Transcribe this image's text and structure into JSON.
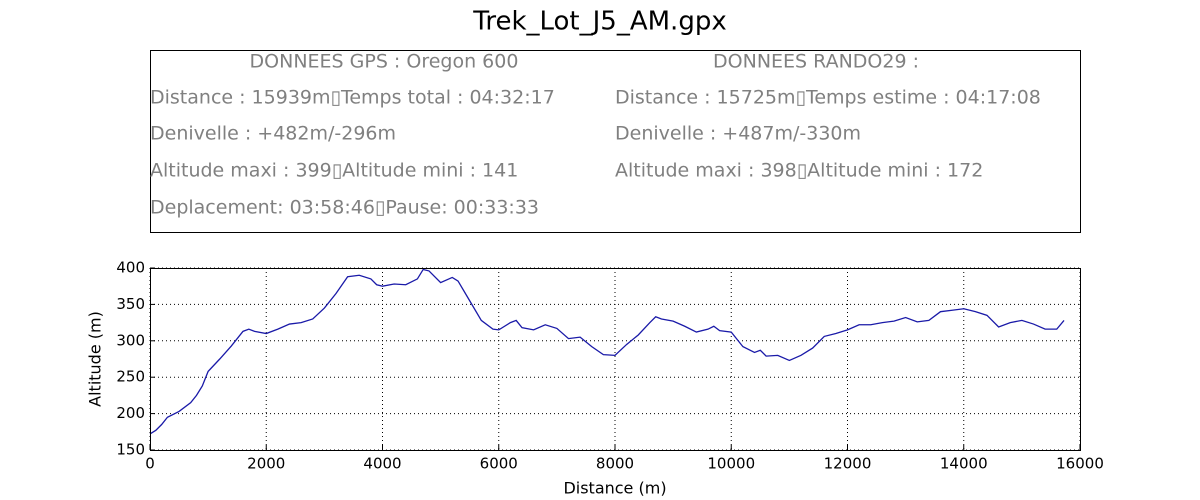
{
  "chart_data": {
    "type": "line",
    "title": "Trek_Lot_J5_AM.gpx",
    "annotations": {
      "left": [
        "DONNEES GPS :  Oregon 600",
        "Distance : 15939m▯Temps total : 04:32:17",
        "Denivelle : +482m/-296m",
        "Altitude maxi : 399▯Altitude mini : 141",
        "Deplacement: 03:58:46▯Pause: 00:33:33"
      ],
      "right": [
        "DONNEES RANDO29  :",
        "Distance : 15725m▯Temps estime : 04:17:08",
        "Denivelle : +487m/-330m",
        "Altitude maxi : 398▯Altitude mini : 172"
      ]
    },
    "xlabel": "Distance (m)",
    "ylabel": "Altitude (m)",
    "x": [
      0,
      100,
      200,
      300,
      500,
      700,
      800,
      900,
      1000,
      1200,
      1400,
      1600,
      1700,
      1800,
      2000,
      2200,
      2400,
      2600,
      2800,
      3000,
      3200,
      3400,
      3600,
      3800,
      3900,
      4000,
      4200,
      4400,
      4600,
      4700,
      4800,
      5000,
      5200,
      5300,
      5500,
      5700,
      5900,
      6000,
      6200,
      6300,
      6400,
      6600,
      6800,
      7000,
      7200,
      7400,
      7600,
      7800,
      8000,
      8200,
      8400,
      8600,
      8700,
      8800,
      9000,
      9200,
      9400,
      9600,
      9700,
      9800,
      10000,
      10200,
      10400,
      10500,
      10600,
      10800,
      11000,
      11200,
      11400,
      11600,
      11800,
      12000,
      12200,
      12400,
      12600,
      12800,
      13000,
      13200,
      13400,
      13600,
      13800,
      14000,
      14200,
      14400,
      14600,
      14800,
      15000,
      15200,
      15400,
      15600,
      15725
    ],
    "values": [
      172,
      177,
      185,
      195,
      203,
      215,
      225,
      238,
      258,
      275,
      293,
      313,
      316,
      313,
      310,
      316,
      323,
      325,
      330,
      345,
      365,
      388,
      390,
      385,
      377,
      375,
      378,
      377,
      385,
      398,
      396,
      380,
      387,
      382,
      355,
      328,
      316,
      315,
      325,
      328,
      318,
      315,
      322,
      317,
      303,
      305,
      292,
      281,
      280,
      295,
      308,
      325,
      333,
      330,
      327,
      320,
      312,
      316,
      320,
      314,
      312,
      292,
      284,
      287,
      279,
      280,
      273,
      280,
      290,
      306,
      310,
      315,
      322,
      322,
      325,
      327,
      332,
      326,
      328,
      340,
      342,
      344,
      340,
      335,
      319,
      325,
      328,
      323,
      316,
      316,
      328
    ],
    "color": "#1a1aa8",
    "xlim": [
      0,
      16000
    ],
    "ylim": [
      150,
      400
    ],
    "xticks": [
      0,
      2000,
      4000,
      6000,
      8000,
      10000,
      12000,
      14000,
      16000
    ],
    "yticks": [
      150,
      200,
      250,
      300,
      350,
      400
    ],
    "grid": true
  }
}
